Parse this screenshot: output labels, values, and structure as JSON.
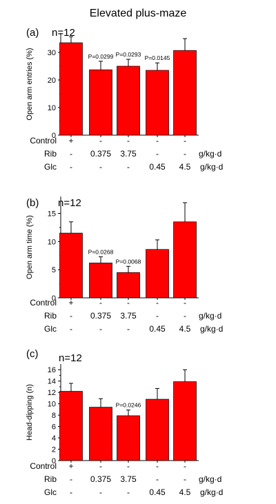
{
  "figure_title": "Elevated plus-maze",
  "chart_data": [
    {
      "type": "bar",
      "panel_label": "(a)",
      "n_label": "n=12",
      "ylabel": "Open arm entries (%)",
      "ylim": [
        0,
        37
      ],
      "yticks": [
        0,
        10,
        20,
        30
      ],
      "categories": [
        "Control",
        "Rib 0.375",
        "Rib 3.75",
        "Glc 0.45",
        "Glc 4.5"
      ],
      "values": [
        33.5,
        23.7,
        25.0,
        23.5,
        30.7
      ],
      "errors": [
        2.2,
        3.1,
        2.5,
        2.7,
        4.3
      ],
      "p_values": [
        "",
        "P=0.0299",
        "P=0.0293",
        "P=0.0145",
        ""
      ],
      "bar_color": "#FF0000",
      "grid": false
    },
    {
      "type": "bar",
      "panel_label": "(b)",
      "n_label": "n=12",
      "ylabel": "Open arm time (%)",
      "ylim": [
        0,
        18
      ],
      "yticks": [
        0,
        5,
        10,
        15
      ],
      "categories": [
        "Control",
        "Rib 0.375",
        "Rib 3.75",
        "Glc 0.45",
        "Glc 4.5"
      ],
      "values": [
        11.5,
        6.2,
        4.5,
        8.6,
        13.5
      ],
      "errors": [
        2.0,
        1.1,
        1.1,
        1.7,
        3.4
      ],
      "p_values": [
        "",
        "P=0.0268",
        "P=0.0068",
        "",
        ""
      ],
      "bar_color": "#FF0000",
      "grid": false
    },
    {
      "type": "bar",
      "panel_label": "(c)",
      "n_label": "n=12",
      "ylabel": "Head-dipping (n)",
      "ylim": [
        0,
        17
      ],
      "yticks": [
        0,
        2,
        4,
        6,
        8,
        10,
        12,
        14,
        16
      ],
      "categories": [
        "Control",
        "Rib 0.375",
        "Rib 3.75",
        "Glc 0.45",
        "Glc 4.5"
      ],
      "values": [
        12.2,
        9.4,
        7.9,
        10.8,
        13.9
      ],
      "errors": [
        1.4,
        1.5,
        1.0,
        1.9,
        2.1
      ],
      "p_values": [
        "",
        "",
        "P=0.0246",
        "",
        ""
      ],
      "bar_color": "#FF0000",
      "grid": false
    }
  ],
  "treatment_table": {
    "rows": [
      {
        "label": "Control",
        "cells": [
          "+",
          "-",
          "-",
          "-",
          "-"
        ],
        "unit": ""
      },
      {
        "label": "Rib",
        "cells": [
          "-",
          "0.375",
          "3.75",
          "-",
          "-"
        ],
        "unit": "g/kg·d"
      },
      {
        "label": "Glc",
        "cells": [
          "-",
          "-",
          "-",
          "0.45",
          "4.5"
        ],
        "unit": "g/kg·d"
      }
    ]
  }
}
